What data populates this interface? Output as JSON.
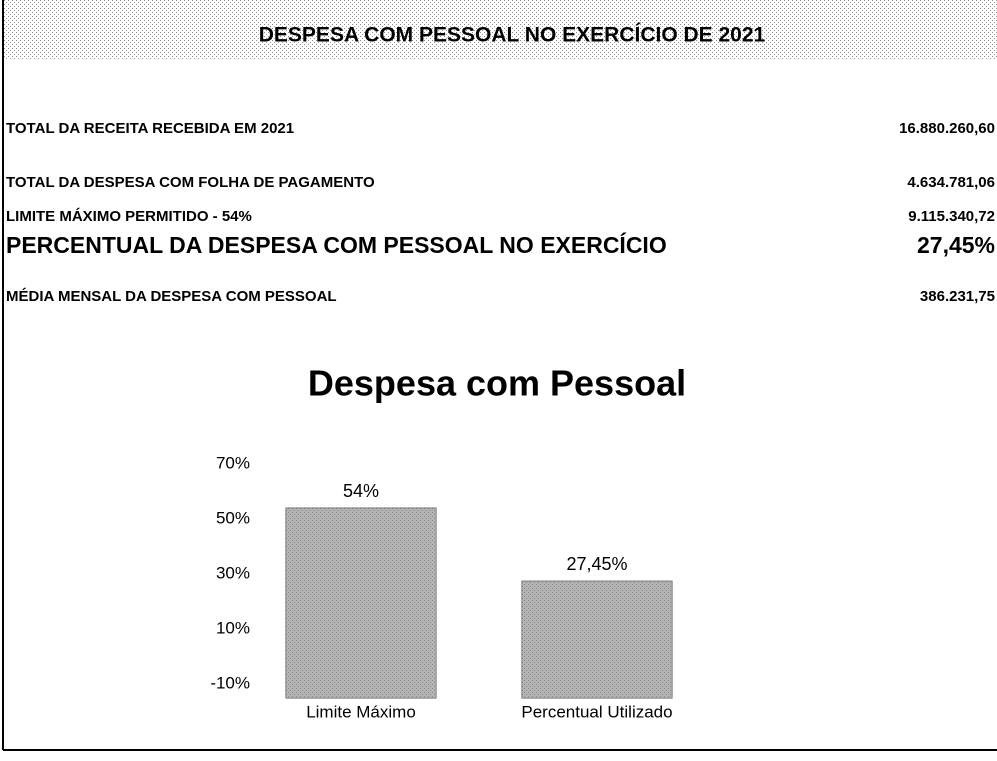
{
  "header": {
    "title": "DESPESA COM PESSOAL NO EXERCÍCIO DE 2021"
  },
  "rows": [
    {
      "label": "TOTAL DA RECEITA RECEBIDA EM 2021",
      "value": "16.880.260,60"
    },
    {
      "label": "TOTAL DA DESPESA COM FOLHA DE PAGAMENTO",
      "value": "4.634.781,06"
    },
    {
      "label": "LIMITE MÁXIMO PERMITIDO - 54%",
      "value": "9.115.340,72"
    },
    {
      "label": "PERCENTUAL DA DESPESA COM PESSOAL NO EXERCÍCIO",
      "value": "27,45%"
    },
    {
      "label": "MÉDIA MENSAL DA DESPESA COM PESSOAL",
      "value": "386.231,75"
    }
  ],
  "chart_data": {
    "type": "bar",
    "title": "Despesa com Pessoal",
    "categories": [
      "Limite Máximo",
      "Percentual Utilizado"
    ],
    "values": [
      54,
      27.45
    ],
    "value_labels": [
      "54%",
      "27,45%"
    ],
    "color": "#8a8a8a",
    "ylim": [
      -15,
      70
    ],
    "yticks": [
      {
        "value": 70,
        "label": "70%"
      },
      {
        "value": 50,
        "label": "50%"
      },
      {
        "value": 30,
        "label": "30%"
      },
      {
        "value": 10,
        "label": "10%"
      },
      {
        "value": -10,
        "label": "-10%"
      }
    ]
  }
}
